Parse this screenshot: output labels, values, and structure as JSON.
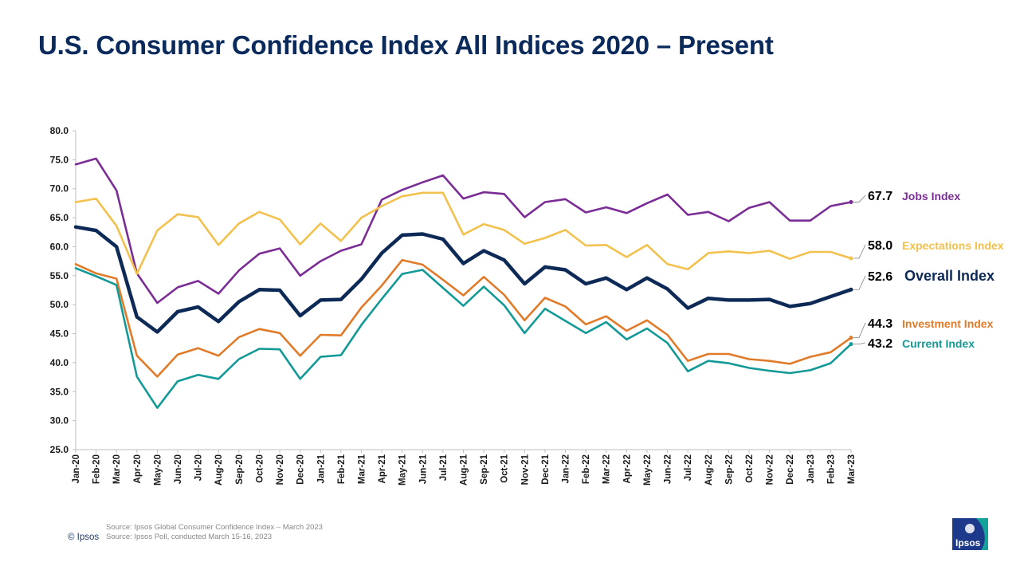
{
  "title": "U.S. Consumer Confidence Index All Indices 2020 – Present",
  "chart_data": {
    "type": "line",
    "title": "U.S. Consumer Confidence Index All Indices 2020 – Present",
    "xlabel": "",
    "ylabel": "",
    "ylim": [
      25.0,
      80.0
    ],
    "yticks": [
      "80.0",
      "75.0",
      "70.0",
      "65.0",
      "60.0",
      "55.0",
      "50.0",
      "45.0",
      "40.0",
      "35.0",
      "30.0",
      "25.0"
    ],
    "categories": [
      "Jan-20",
      "Feb-20",
      "Mar-20",
      "Apr-20",
      "May-20",
      "Jun-20",
      "Jul-20",
      "Aug-20",
      "Sep-20",
      "Oct-20",
      "Nov-20",
      "Dec-20",
      "Jan-21",
      "Feb-21",
      "Mar-21",
      "Apr-21",
      "May-21",
      "Jun-21",
      "Jul-21",
      "Aug-21",
      "Sep-21",
      "Oct-21",
      "Nov-21",
      "Dec-21",
      "Jan-22",
      "Feb-22",
      "Mar-22",
      "Apr-22",
      "May-22",
      "Jun-22",
      "Jul-22",
      "Aug-22",
      "Sep-22",
      "Oct-22",
      "Nov-22",
      "Dec-22",
      "Jan-23",
      "Feb-23",
      "Mar-23"
    ],
    "series": [
      {
        "name": "Jobs Index",
        "label_value": "67.7",
        "color": "#7b2d96",
        "values": [
          74.2,
          75.2,
          69.7,
          55.4,
          50.3,
          53.0,
          54.1,
          51.9,
          55.9,
          58.8,
          59.7,
          55.0,
          57.5,
          59.3,
          60.4,
          68.1,
          69.8,
          71.1,
          72.3,
          68.3,
          69.4,
          69.1,
          65.1,
          67.7,
          68.2,
          65.9,
          66.8,
          65.8,
          67.5,
          69.0,
          65.5,
          66.0,
          64.4,
          66.7,
          67.7,
          64.5,
          64.5,
          67.0,
          67.7
        ]
      },
      {
        "name": "Expectations Index",
        "label_value": "58.0",
        "color": "#f2c14e",
        "values": [
          67.7,
          68.3,
          63.6,
          55.3,
          62.8,
          65.6,
          65.1,
          60.3,
          64.0,
          66.0,
          64.7,
          60.4,
          64.0,
          61.0,
          65.0,
          67.0,
          68.7,
          69.3,
          69.3,
          62.1,
          63.9,
          62.9,
          60.5,
          61.5,
          62.9,
          60.2,
          60.3,
          58.2,
          60.3,
          57.0,
          56.1,
          58.9,
          59.2,
          58.9,
          59.3,
          57.9,
          59.1,
          59.1,
          58.0
        ]
      },
      {
        "name": "Overall Index",
        "label_value": "52.6",
        "color": "#0d2a57",
        "values": [
          63.4,
          62.8,
          60.0,
          47.9,
          45.3,
          48.8,
          49.6,
          47.1,
          50.5,
          52.6,
          52.5,
          48.1,
          50.8,
          50.9,
          54.4,
          58.9,
          62.0,
          62.2,
          61.3,
          57.1,
          59.3,
          57.7,
          53.6,
          56.5,
          56.0,
          53.6,
          54.6,
          52.6,
          54.6,
          52.7,
          49.4,
          51.1,
          50.8,
          50.8,
          50.9,
          49.7,
          50.2,
          51.4,
          52.6
        ]
      },
      {
        "name": "Investment Index",
        "label_value": "44.3",
        "color": "#e07b2a",
        "values": [
          57.0,
          55.4,
          54.5,
          41.2,
          37.6,
          41.4,
          42.5,
          41.2,
          44.4,
          45.8,
          45.1,
          41.2,
          44.8,
          44.7,
          49.5,
          53.3,
          57.7,
          56.9,
          54.3,
          51.6,
          54.8,
          51.7,
          47.3,
          51.2,
          49.7,
          46.6,
          48.0,
          45.5,
          47.3,
          44.8,
          40.3,
          41.5,
          41.5,
          40.6,
          40.3,
          39.8,
          41.0,
          41.8,
          44.3
        ]
      },
      {
        "name": "Current Index",
        "label_value": "43.2",
        "color": "#149a96",
        "values": [
          56.3,
          54.9,
          53.4,
          37.6,
          32.2,
          36.8,
          37.9,
          37.2,
          40.6,
          42.4,
          42.3,
          37.2,
          41.0,
          41.3,
          46.5,
          51.0,
          55.3,
          56.0,
          52.9,
          49.8,
          53.1,
          49.9,
          45.1,
          49.3,
          47.2,
          45.1,
          47.0,
          44.0,
          45.9,
          43.4,
          38.5,
          40.3,
          39.9,
          39.1,
          38.6,
          38.2,
          38.7,
          39.9,
          43.2
        ]
      }
    ]
  },
  "footer": {
    "source_line_1": "Source: Ipsos Global Consumer Confidence Index – March 2023",
    "source_line_2": "Source: Ipsos Poll,  conducted March 15-16, 2023",
    "copyright": "© Ipsos",
    "logo_text": "Ipsos"
  }
}
